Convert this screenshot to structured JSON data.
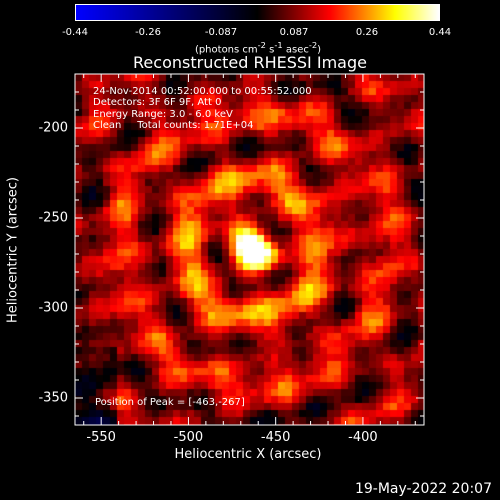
{
  "chart_data": {
    "type": "heatmap",
    "title": "Reconstructed RHESSI Image",
    "xlabel": "Heliocentric X (arcsec)",
    "ylabel": "Heliocentric Y (arcsec)",
    "xlim": [
      -565,
      -365
    ],
    "ylim": [
      -365,
      -170
    ],
    "x_ticks": [
      -550,
      -500,
      -450,
      -400
    ],
    "y_ticks": [
      -200,
      -250,
      -300,
      -350
    ],
    "colorbar": {
      "range": [
        -0.44,
        0.44
      ],
      "ticks": [
        "-0.44",
        "-0.26",
        "-0.087",
        "0.087",
        "0.26",
        "0.44"
      ],
      "units_html": "(photons cm<sup>-2</sup> s<sup>-1</sup> asec<sup>-2</sup>)",
      "colormap": [
        "#0000ff",
        "#000000",
        "#ff0000",
        "#ffff00",
        "#ffffff"
      ]
    },
    "annotations": {
      "time_range": "24-Nov-2014 00:52:00.000 to 00:55:52.000",
      "detectors": "Detectors: 3F 6F 9F, Att 0",
      "energy": "Energy Range: 3.0 - 6.0 keV",
      "algorithm": "Clean     Total counts: 1.71E+04",
      "peak": "Position of Peak = [-463,-267]"
    },
    "peak": {
      "x": -463,
      "y": -267,
      "value": 0.44
    }
  },
  "footer": {
    "date": "19-May-2022 20:07"
  }
}
